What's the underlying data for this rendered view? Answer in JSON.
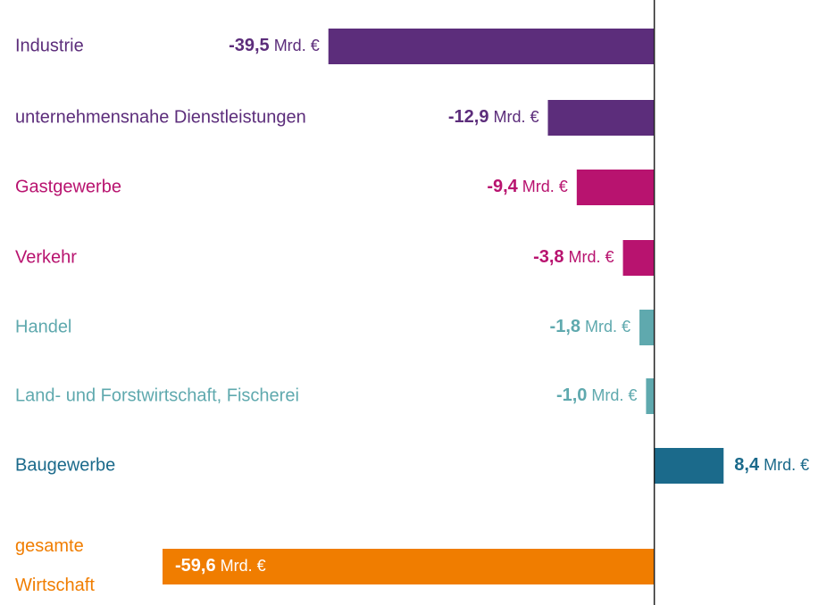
{
  "chart_data": {
    "type": "hbar",
    "categories": [
      "Industrie",
      "unternehmensnahe Dienstleistungen",
      "Gastgewerbe",
      "Verkehr",
      "Handel",
      "Land- und Forstwirtschaft, Fischerei",
      "Baugewerbe",
      "gesamte Wirtschaft"
    ],
    "values": [
      -39.5,
      -12.9,
      -9.4,
      -3.8,
      -1.8,
      -1.0,
      8.4,
      -59.6
    ],
    "value_labels": [
      "-39,5 Mrd. €",
      "-12,9 Mrd. €",
      "-9,4 Mrd. €",
      "-3,8 Mrd. €",
      "-1,8 Mrd. €",
      "-1,0 Mrd. €",
      "8,4 Mrd. €",
      "-59,6 Mrd. €"
    ],
    "colors": [
      "#5c2d7b",
      "#5c2d7b",
      "#b8136f",
      "#b8136f",
      "#5fa9ae",
      "#5fa9ae",
      "#1b6a8b",
      "#f07d00"
    ],
    "xlim": [
      -79.3,
      21.9
    ]
  }
}
